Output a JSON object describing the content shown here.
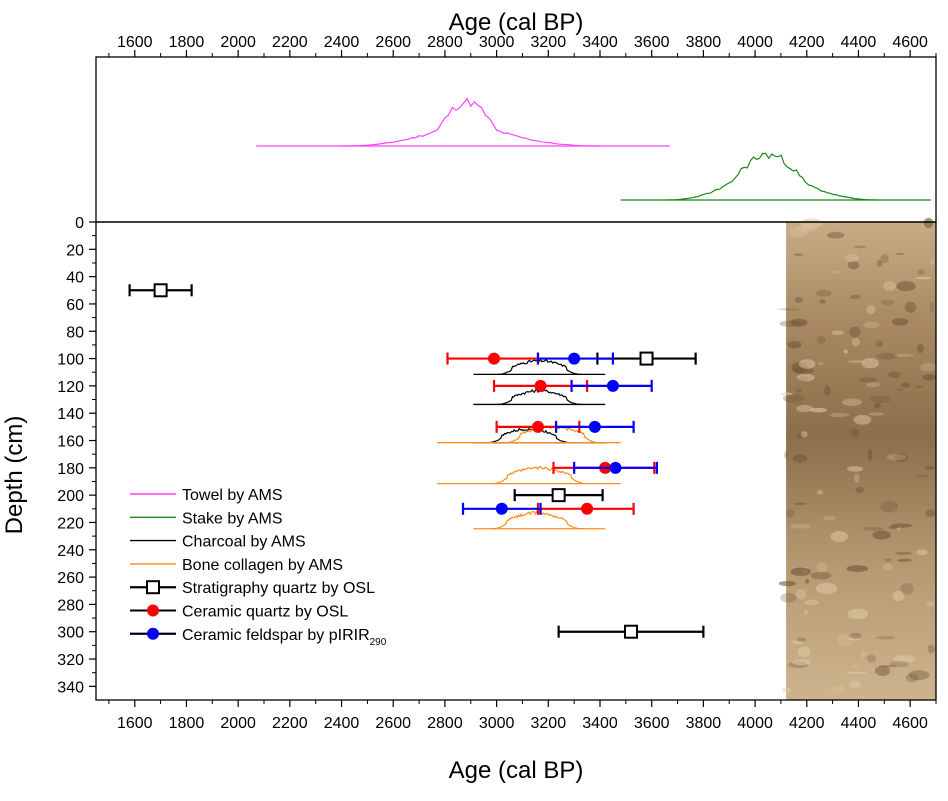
{
  "chart_data": {
    "type": "scatter",
    "x_axis": {
      "label": "Age (cal BP)",
      "range": [
        1450,
        4700
      ],
      "ticks": [
        1600,
        1800,
        2000,
        2200,
        2400,
        2600,
        2800,
        3000,
        3200,
        3400,
        3600,
        3800,
        4000,
        4200,
        4400,
        4600
      ],
      "top_label": "Age (cal BP)"
    },
    "y_axis": {
      "label": "Depth (cm)",
      "range": [
        0,
        350
      ],
      "ticks": [
        0,
        20,
        40,
        60,
        80,
        100,
        120,
        140,
        160,
        180,
        200,
        220,
        240,
        260,
        280,
        300,
        320,
        340
      ],
      "inverted": true
    },
    "legend": [
      {
        "label": "Towel by AMS",
        "color": "#ff40ff",
        "kind": "line"
      },
      {
        "label": "Stake by AMS",
        "color": "#1a8a1a",
        "kind": "line"
      },
      {
        "label": "Charcoal by AMS",
        "color": "#000000",
        "kind": "line"
      },
      {
        "label": "Bone collagen by AMS",
        "color": "#ff8c1a",
        "kind": "line"
      },
      {
        "label": "Stratigraphy quartz by OSL",
        "color": "#000000",
        "kind": "open-square"
      },
      {
        "label": "Ceramic quartz by OSL",
        "color": "#ff0000",
        "kind": "red-dot"
      },
      {
        "label": "Ceramic feldspar by pIRIR",
        "sub": "290",
        "color": "#0000ff",
        "kind": "blue-dot"
      }
    ],
    "legend_position": "bottom-left",
    "photo_inset": {
      "x_from": 4120,
      "side": "right"
    },
    "top_panel": {
      "towel": {
        "color": "#ff40ff",
        "baseline_x": [
          2070,
          3670
        ],
        "peak_x": 2880
      },
      "stake": {
        "color": "#1a8a1a",
        "baseline_x": [
          3480,
          4680
        ],
        "peak_x": 4070
      }
    },
    "series": [
      {
        "name": "Stratigraphy quartz by OSL",
        "color": "#000000",
        "marker": "open-square",
        "points": [
          {
            "age": 1700,
            "depth": 50,
            "err_lo": 1580,
            "err_hi": 1820
          },
          {
            "age": 3580,
            "depth": 100,
            "err_lo": 3390,
            "err_hi": 3770
          },
          {
            "age": 3240,
            "depth": 200,
            "err_lo": 3070,
            "err_hi": 3410
          },
          {
            "age": 3520,
            "depth": 300,
            "err_lo": 3240,
            "err_hi": 3800
          }
        ]
      },
      {
        "name": "Ceramic quartz by OSL",
        "color": "#ff0000",
        "marker": "red-dot",
        "points": [
          {
            "age": 2990,
            "depth": 100,
            "err_lo": 2810,
            "err_hi": 3160
          },
          {
            "age": 3170,
            "depth": 120,
            "err_lo": 2990,
            "err_hi": 3350
          },
          {
            "age": 3160,
            "depth": 150,
            "err_lo": 3000,
            "err_hi": 3320
          },
          {
            "age": 3420,
            "depth": 180,
            "err_lo": 3220,
            "err_hi": 3610
          },
          {
            "age": 3350,
            "depth": 210,
            "err_lo": 3160,
            "err_hi": 3530
          }
        ]
      },
      {
        "name": "Ceramic feldspar by pIRIR290",
        "color": "#0000ff",
        "marker": "blue-dot",
        "points": [
          {
            "age": 3300,
            "depth": 100,
            "err_lo": 3160,
            "err_hi": 3450
          },
          {
            "age": 3450,
            "depth": 120,
            "err_lo": 3290,
            "err_hi": 3600
          },
          {
            "age": 3380,
            "depth": 150,
            "err_lo": 3230,
            "err_hi": 3530
          },
          {
            "age": 3460,
            "depth": 180,
            "err_lo": 3300,
            "err_hi": 3620
          },
          {
            "age": 3020,
            "depth": 210,
            "err_lo": 2870,
            "err_hi": 3170
          }
        ]
      }
    ],
    "distributions": [
      {
        "name": "Charcoal by AMS",
        "color": "#000000",
        "depth": 105,
        "base_x": [
          2910,
          3420
        ],
        "core_x": [
          3060,
          3270
        ],
        "height": 14
      },
      {
        "name": "Charcoal by AMS",
        "color": "#000000",
        "depth": 127,
        "base_x": [
          2910,
          3420
        ],
        "core_x": [
          3060,
          3270
        ],
        "height": 14
      },
      {
        "name": "Charcoal by AMS",
        "color": "#000000",
        "depth": 155,
        "base_x": [
          2910,
          3420
        ],
        "core_x": [
          3020,
          3230
        ],
        "height": 14
      },
      {
        "name": "Bone collagen by AMS",
        "color": "#ff8c1a",
        "depth": 155,
        "base_x": [
          2770,
          3480
        ],
        "core_x": [
          3090,
          3340
        ],
        "height": 16
      },
      {
        "name": "Bone collagen by AMS",
        "color": "#ff8c1a",
        "depth": 185,
        "base_x": [
          2770,
          3480
        ],
        "core_x": [
          3040,
          3290
        ],
        "height": 16
      },
      {
        "name": "Bone collagen by AMS",
        "color": "#ff8c1a",
        "depth": 218,
        "base_x": [
          2910,
          3420
        ],
        "core_x": [
          3040,
          3270
        ],
        "height": 16
      }
    ]
  }
}
